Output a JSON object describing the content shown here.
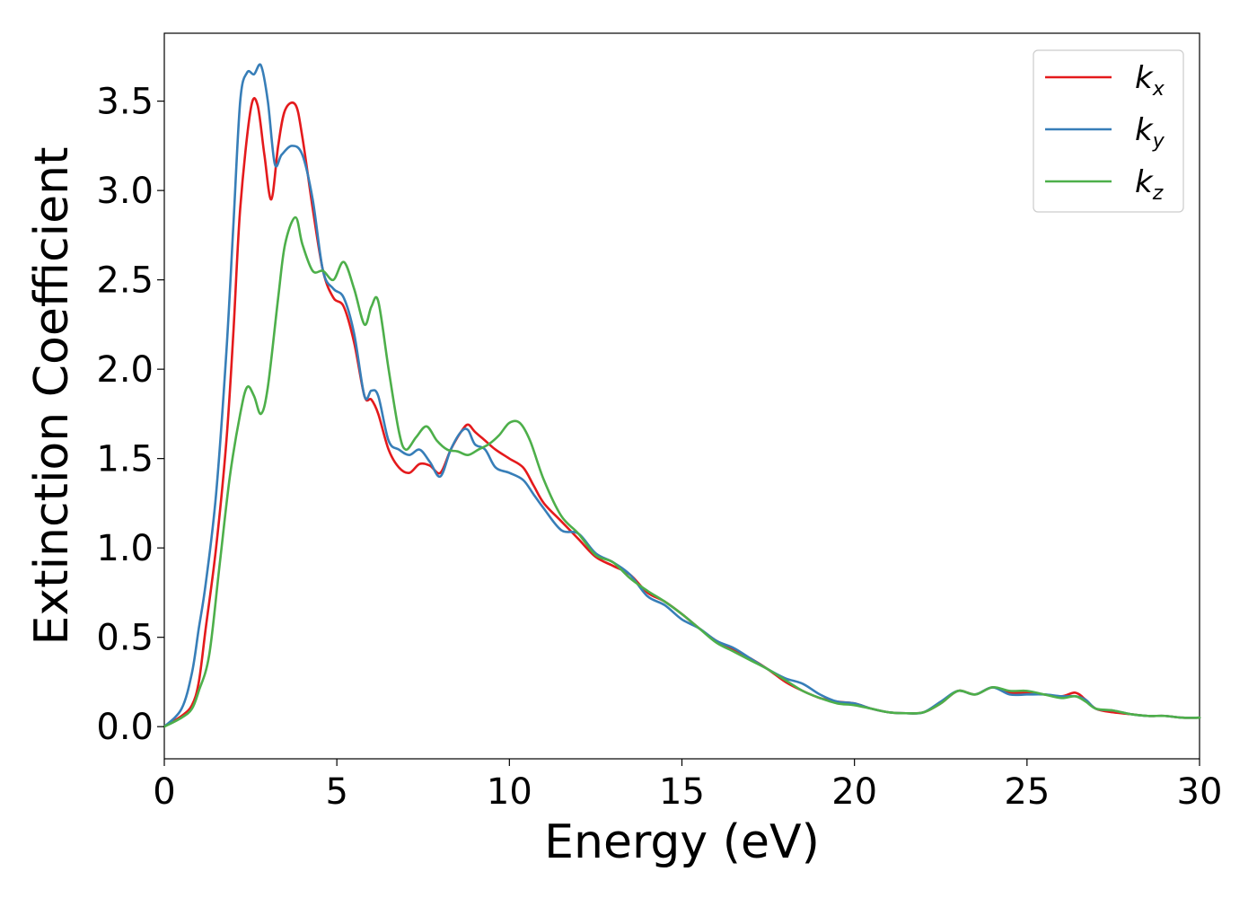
{
  "chart_data": {
    "type": "line",
    "xlabel": "Energy (eV)",
    "ylabel": "Extinction Coefficient",
    "xlim": [
      0,
      30
    ],
    "ylim": [
      -0.18,
      3.88
    ],
    "xticks": [
      0,
      5,
      10,
      15,
      20,
      25,
      30
    ],
    "xtick_labels": [
      "0",
      "5",
      "10",
      "15",
      "20",
      "25",
      "30"
    ],
    "yticks": [
      0.0,
      0.5,
      1.0,
      1.5,
      2.0,
      2.5,
      3.0,
      3.5
    ],
    "ytick_labels": [
      "0.0",
      "0.5",
      "1.0",
      "1.5",
      "2.0",
      "2.5",
      "3.0",
      "3.5"
    ],
    "grid": false,
    "legend_position": "top-right",
    "series": [
      {
        "name": "k",
        "subscript": "x",
        "color": "#e41a1c",
        "x": [
          0,
          0.5,
          0.8,
          1.0,
          1.2,
          1.5,
          1.8,
          2.0,
          2.2,
          2.5,
          2.7,
          2.9,
          3.1,
          3.3,
          3.5,
          3.8,
          4.0,
          4.3,
          4.6,
          4.9,
          5.2,
          5.5,
          5.8,
          6.0,
          6.2,
          6.5,
          6.8,
          7.1,
          7.4,
          7.7,
          8.0,
          8.3,
          8.6,
          8.8,
          9.0,
          9.3,
          9.6,
          10.0,
          10.4,
          10.7,
          11.0,
          11.5,
          12.0,
          12.5,
          13.0,
          13.5,
          14.0,
          14.5,
          15.0,
          15.5,
          16.0,
          16.5,
          17.0,
          17.5,
          18.0,
          18.5,
          19.0,
          19.5,
          20.0,
          20.5,
          21.0,
          21.5,
          22.0,
          22.5,
          23.0,
          23.5,
          24.0,
          24.5,
          25.0,
          25.5,
          26.0,
          26.4,
          26.7,
          27.0,
          27.5,
          28.0,
          28.5,
          29.0,
          29.5,
          30.0
        ],
        "y": [
          0,
          0.06,
          0.12,
          0.25,
          0.55,
          1.0,
          1.6,
          2.2,
          2.9,
          3.45,
          3.48,
          3.2,
          2.95,
          3.25,
          3.45,
          3.48,
          3.3,
          2.9,
          2.55,
          2.4,
          2.35,
          2.15,
          1.85,
          1.83,
          1.75,
          1.55,
          1.45,
          1.42,
          1.47,
          1.46,
          1.42,
          1.55,
          1.65,
          1.69,
          1.65,
          1.6,
          1.55,
          1.5,
          1.45,
          1.35,
          1.25,
          1.15,
          1.05,
          0.95,
          0.9,
          0.85,
          0.75,
          0.7,
          0.63,
          0.55,
          0.48,
          0.43,
          0.38,
          0.32,
          0.25,
          0.2,
          0.16,
          0.14,
          0.13,
          0.1,
          0.08,
          0.075,
          0.08,
          0.13,
          0.2,
          0.18,
          0.22,
          0.19,
          0.19,
          0.18,
          0.17,
          0.19,
          0.15,
          0.1,
          0.08,
          0.07,
          0.06,
          0.06,
          0.05,
          0.05
        ]
      },
      {
        "name": "k",
        "subscript": "y",
        "color": "#377eb8",
        "x": [
          0,
          0.5,
          0.8,
          1.0,
          1.2,
          1.5,
          1.8,
          2.0,
          2.2,
          2.4,
          2.6,
          2.8,
          3.0,
          3.2,
          3.4,
          3.7,
          4.0,
          4.3,
          4.6,
          4.9,
          5.2,
          5.5,
          5.8,
          6.0,
          6.2,
          6.5,
          6.8,
          7.1,
          7.4,
          7.7,
          8.0,
          8.3,
          8.6,
          8.8,
          9.0,
          9.3,
          9.6,
          10.0,
          10.4,
          10.7,
          11.0,
          11.5,
          12.0,
          12.5,
          13.0,
          13.5,
          14.0,
          14.5,
          15.0,
          15.5,
          16.0,
          16.5,
          17.0,
          17.5,
          18.0,
          18.5,
          19.0,
          19.5,
          20.0,
          20.5,
          21.0,
          21.5,
          22.0,
          22.5,
          23.0,
          23.5,
          24.0,
          24.5,
          25.0,
          25.5,
          26.0,
          26.4,
          26.7,
          27.0,
          27.5,
          28.0,
          28.5,
          29.0,
          29.5,
          30.0
        ],
        "y": [
          0,
          0.1,
          0.3,
          0.55,
          0.8,
          1.3,
          2.1,
          2.8,
          3.5,
          3.66,
          3.65,
          3.7,
          3.5,
          3.15,
          3.2,
          3.25,
          3.2,
          2.95,
          2.55,
          2.45,
          2.4,
          2.2,
          1.85,
          1.88,
          1.85,
          1.6,
          1.55,
          1.52,
          1.55,
          1.48,
          1.4,
          1.55,
          1.65,
          1.66,
          1.58,
          1.55,
          1.45,
          1.42,
          1.38,
          1.3,
          1.22,
          1.1,
          1.08,
          0.97,
          0.92,
          0.85,
          0.73,
          0.68,
          0.6,
          0.55,
          0.48,
          0.44,
          0.38,
          0.32,
          0.27,
          0.24,
          0.18,
          0.14,
          0.13,
          0.1,
          0.08,
          0.075,
          0.08,
          0.14,
          0.2,
          0.18,
          0.22,
          0.18,
          0.18,
          0.18,
          0.17,
          0.17,
          0.15,
          0.1,
          0.09,
          0.07,
          0.06,
          0.06,
          0.05,
          0.05
        ]
      },
      {
        "name": "k",
        "subscript": "z",
        "color": "#4daf4a",
        "x": [
          0,
          0.5,
          0.8,
          1.0,
          1.3,
          1.6,
          1.9,
          2.2,
          2.4,
          2.6,
          2.8,
          3.0,
          3.3,
          3.5,
          3.8,
          4.0,
          4.3,
          4.6,
          4.9,
          5.2,
          5.5,
          5.8,
          6.0,
          6.2,
          6.5,
          6.8,
          7.0,
          7.3,
          7.6,
          7.9,
          8.2,
          8.5,
          8.8,
          9.1,
          9.4,
          9.7,
          10.0,
          10.3,
          10.6,
          11.0,
          11.5,
          12.0,
          12.5,
          13.0,
          13.5,
          14.0,
          14.5,
          15.0,
          15.5,
          16.0,
          16.5,
          17.0,
          17.5,
          18.0,
          18.5,
          19.0,
          19.5,
          20.0,
          20.5,
          21.0,
          21.5,
          22.0,
          22.5,
          23.0,
          23.5,
          24.0,
          24.5,
          25.0,
          25.5,
          26.0,
          26.4,
          26.7,
          27.0,
          27.5,
          28.0,
          28.5,
          29.0,
          29.5,
          30.0
        ],
        "y": [
          0,
          0.05,
          0.1,
          0.2,
          0.4,
          0.9,
          1.4,
          1.75,
          1.9,
          1.85,
          1.75,
          1.9,
          2.4,
          2.7,
          2.85,
          2.7,
          2.55,
          2.55,
          2.5,
          2.6,
          2.45,
          2.25,
          2.35,
          2.38,
          2.0,
          1.65,
          1.55,
          1.62,
          1.68,
          1.6,
          1.55,
          1.54,
          1.52,
          1.55,
          1.58,
          1.63,
          1.7,
          1.7,
          1.6,
          1.38,
          1.18,
          1.08,
          0.96,
          0.92,
          0.83,
          0.76,
          0.7,
          0.63,
          0.55,
          0.47,
          0.42,
          0.37,
          0.32,
          0.26,
          0.2,
          0.16,
          0.13,
          0.12,
          0.1,
          0.08,
          0.075,
          0.08,
          0.13,
          0.2,
          0.18,
          0.22,
          0.2,
          0.2,
          0.18,
          0.16,
          0.17,
          0.14,
          0.1,
          0.09,
          0.07,
          0.06,
          0.06,
          0.05,
          0.05
        ]
      }
    ]
  }
}
